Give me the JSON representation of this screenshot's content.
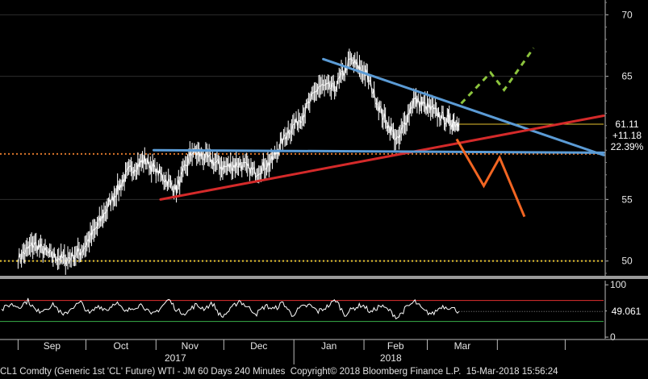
{
  "chart_data": [
    {
      "type": "line",
      "title": "",
      "ylim": [
        48.8,
        71.2
      ],
      "y_ticks": [
        "70",
        "65",
        "55",
        "50"
      ],
      "y_tick_values": [
        70,
        65,
        55,
        50
      ],
      "x_ticks": [
        "Sep",
        "Oct",
        "Nov",
        "Dec",
        "Jan",
        "Feb",
        "Mar"
      ],
      "year_labels": [
        "2017",
        "2018"
      ],
      "price_series": {
        "name": "",
        "color": "#ffffff",
        "dates": [
          "2017-09-01",
          "2017-09-08",
          "2017-09-15",
          "2017-09-22",
          "2017-09-29",
          "2017-10-06",
          "2017-10-13",
          "2017-10-20",
          "2017-10-27",
          "2017-11-03",
          "2017-11-10",
          "2017-11-17",
          "2017-11-24",
          "2017-12-01",
          "2017-12-08",
          "2017-12-15",
          "2017-12-22",
          "2017-12-29",
          "2018-01-05",
          "2018-01-12",
          "2018-01-19",
          "2018-01-26",
          "2018-02-02",
          "2018-02-09",
          "2018-02-16",
          "2018-02-23",
          "2018-03-02",
          "2018-03-09",
          "2018-03-15"
        ],
        "values": [
          50.2,
          51.4,
          50.5,
          50.1,
          50.8,
          52.8,
          55.2,
          57.3,
          58.2,
          57.0,
          55.8,
          58.9,
          58.3,
          57.6,
          57.9,
          57.2,
          58.1,
          60.4,
          61.9,
          64.2,
          64.0,
          66.3,
          65.2,
          61.9,
          59.7,
          63.1,
          62.4,
          61.5,
          61.1
        ]
      },
      "trend_lines": [
        {
          "name": "",
          "color": "#5b9bd5",
          "from": [
            "2018-01-14",
            66.4
          ],
          "to": [
            "2018-05-18",
            58.6
          ]
        },
        {
          "name": "",
          "color": "#d42a2a",
          "from": [
            "2017-11-03",
            55.0
          ],
          "to": [
            "2018-05-18",
            61.8
          ]
        },
        {
          "name": "",
          "color": "#5b9bd5",
          "from": [
            "2017-10-31",
            59.0
          ],
          "to": [
            "2018-05-18",
            58.8
          ]
        }
      ],
      "scenarios": [
        {
          "name": "",
          "color": "#8cc43d",
          "style": "dashed",
          "points": [
            [
              "2018-03-16",
              62.8
            ],
            [
              "2018-03-29",
              65.3
            ],
            [
              "2018-04-04",
              63.9
            ],
            [
              "2018-04-17",
              67.3
            ]
          ]
        },
        {
          "name": "",
          "color": "#f26522",
          "style": "solid",
          "points": [
            [
              "2018-03-14",
              59.9
            ],
            [
              "2018-03-26",
              56.1
            ],
            [
              "2018-04-02",
              58.4
            ],
            [
              "2018-04-13",
              53.6
            ]
          ]
        }
      ],
      "reference_levels": [
        {
          "value": 58.7,
          "color": "#d9752a",
          "style": "dotted"
        },
        {
          "value": 50.0,
          "color": "#e6c230",
          "style": "dotted"
        },
        {
          "value": 61.11,
          "color": "#e6c230",
          "style": "solid"
        }
      ],
      "last_price_labels": [
        "61.11",
        "+11.18",
        "22.39%"
      ]
    },
    {
      "type": "line",
      "title": "",
      "ylim": [
        -3,
        108
      ],
      "y_ticks": [
        "100",
        "50",
        "0"
      ],
      "y_tick_values": [
        100,
        50,
        0
      ],
      "reference_levels": [
        {
          "value": 70,
          "color": "#e03030"
        },
        {
          "value": 30,
          "color": "#38b04a"
        }
      ],
      "rsi_series": {
        "name": "",
        "color": "#ffffff",
        "values": [
          52,
          63,
          58,
          70,
          48,
          55,
          62,
          40,
          57,
          66,
          44,
          60,
          52,
          68,
          47,
          57,
          63,
          41,
          55,
          72,
          50,
          46,
          61,
          55,
          64,
          38,
          52,
          70,
          57,
          45,
          60,
          53,
          66,
          42,
          56,
          61,
          49,
          58,
          71,
          43,
          55,
          62,
          47,
          60,
          52,
          37,
          56,
          68,
          50,
          44,
          59,
          57,
          49.061
        ]
      },
      "last_value_label": "49.061"
    }
  ],
  "footer": {
    "security": "CL1 Comdty (Generic 1st 'CL' Future) WTI - JM 60 Days 240 Minutes",
    "copyright": "Copyright© 2018 Bloomberg Finance L.P.",
    "timestamp": "15-Mar-2018 15:56:24"
  }
}
